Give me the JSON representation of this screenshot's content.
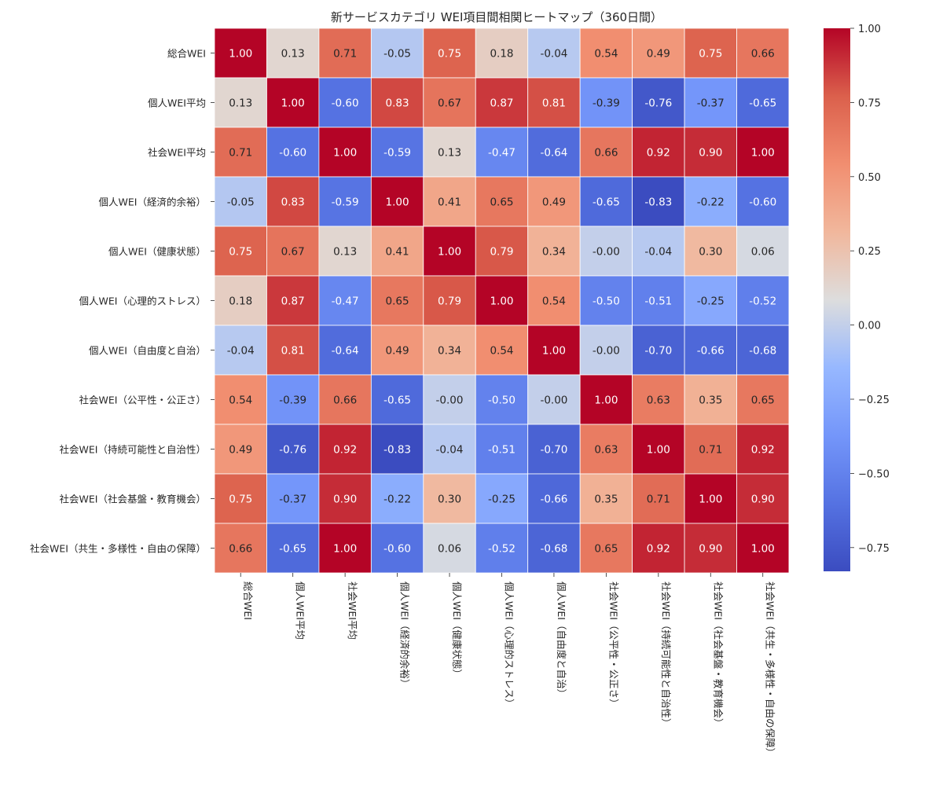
{
  "chart_data": {
    "type": "heatmap",
    "title": "新サービスカテゴリ WEI項目間相関ヒートマップ（360日間）",
    "row_labels": [
      "総合WEI",
      "個人WEI平均",
      "社会WEI平均",
      "個人WEI（経済的余裕）",
      "個人WEI（健康状態）",
      "個人WEI（心理的ストレス）",
      "個人WEI（自由度と自治）",
      "社会WEI（公平性・公正さ）",
      "社会WEI（持続可能性と自治性）",
      "社会WEI（社会基盤・教育機会）",
      "社会WEI（共生・多様性・自由の保障）"
    ],
    "col_labels": [
      "総合WEI",
      "個人WEI平均",
      "社会WEI平均",
      "個人WEI（経済的余裕）",
      "個人WEI（健康状態）",
      "個人WEI（心理的ストレス）",
      "個人WEI（自由度と自治）",
      "社会WEI（公平性・公正さ）",
      "社会WEI（持続可能性と自治性）",
      "社会WEI（社会基盤・教育機会）",
      "社会WEI（共生・多様性・自由の保障）"
    ],
    "cell_labels": [
      [
        "1.00",
        "0.13",
        "0.71",
        "-0.05",
        "0.75",
        "0.18",
        "-0.04",
        "0.54",
        "0.49",
        "0.75",
        "0.66"
      ],
      [
        "0.13",
        "1.00",
        "-0.60",
        "0.83",
        "0.67",
        "0.87",
        "0.81",
        "-0.39",
        "-0.76",
        "-0.37",
        "-0.65"
      ],
      [
        "0.71",
        "-0.60",
        "1.00",
        "-0.59",
        "0.13",
        "-0.47",
        "-0.64",
        "0.66",
        "0.92",
        "0.90",
        "1.00"
      ],
      [
        "-0.05",
        "0.83",
        "-0.59",
        "1.00",
        "0.41",
        "0.65",
        "0.49",
        "-0.65",
        "-0.83",
        "-0.22",
        "-0.60"
      ],
      [
        "0.75",
        "0.67",
        "0.13",
        "0.41",
        "1.00",
        "0.79",
        "0.34",
        "-0.00",
        "-0.04",
        "0.30",
        "0.06"
      ],
      [
        "0.18",
        "0.87",
        "-0.47",
        "0.65",
        "0.79",
        "1.00",
        "0.54",
        "-0.50",
        "-0.51",
        "-0.25",
        "-0.52"
      ],
      [
        "-0.04",
        "0.81",
        "-0.64",
        "0.49",
        "0.34",
        "0.54",
        "1.00",
        "-0.00",
        "-0.70",
        "-0.66",
        "-0.68"
      ],
      [
        "0.54",
        "-0.39",
        "0.66",
        "-0.65",
        "-0.00",
        "-0.50",
        "-0.00",
        "1.00",
        "0.63",
        "0.35",
        "0.65"
      ],
      [
        "0.49",
        "-0.76",
        "0.92",
        "-0.83",
        "-0.04",
        "-0.51",
        "-0.70",
        "0.63",
        "1.00",
        "0.71",
        "0.92"
      ],
      [
        "0.75",
        "-0.37",
        "0.90",
        "-0.22",
        "0.30",
        "-0.25",
        "-0.66",
        "0.35",
        "0.71",
        "1.00",
        "0.90"
      ],
      [
        "0.66",
        "-0.65",
        "1.00",
        "-0.60",
        "0.06",
        "-0.52",
        "-0.68",
        "0.65",
        "0.92",
        "0.90",
        "1.00"
      ]
    ],
    "vmin": -0.83,
    "vmax": 1.0,
    "colormap": "coolwarm",
    "colorbar": {
      "ticks": [
        1.0,
        0.75,
        0.5,
        0.25,
        0.0,
        -0.25,
        -0.5,
        -0.75
      ],
      "tick_labels": [
        "1.00",
        "0.75",
        "0.50",
        "0.25",
        "0.00",
        "−0.25",
        "−0.50",
        "−0.75"
      ]
    },
    "xlabel": "",
    "ylabel": "",
    "grid": false,
    "legend": "colorbar-right"
  }
}
